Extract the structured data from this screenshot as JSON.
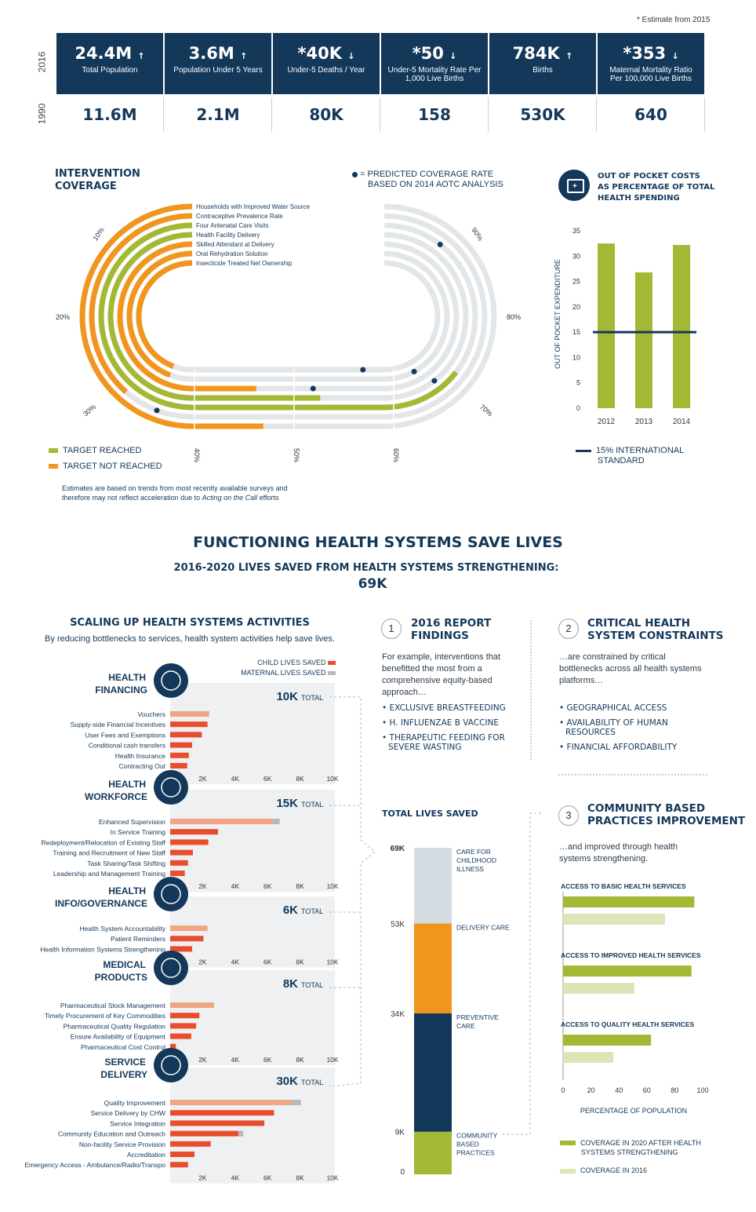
{
  "stats": {
    "note": "* Estimate from 2015",
    "year_top": "2016",
    "year_bottom": "1990",
    "items": [
      {
        "value": "24.4M",
        "arrow": "↑",
        "label": "Total Population",
        "prev": "11.6M"
      },
      {
        "value": "3.6M",
        "arrow": "↑",
        "label": "Population Under 5 Years",
        "prev": "2.1M"
      },
      {
        "value": "*40K",
        "arrow": "↓",
        "label": "Under-5 Deaths / Year",
        "prev": "80K"
      },
      {
        "value": "*50",
        "arrow": "↓",
        "label": "Under-5 Mortality Rate Per 1,000 Live Births",
        "prev": "158"
      },
      {
        "value": "784K",
        "arrow": "↑",
        "label": "Births",
        "prev": "530K"
      },
      {
        "value": "*353",
        "arrow": "↓",
        "label": "Maternal Mortality Ratio Per 100,000 Live Births",
        "prev": "640"
      }
    ]
  },
  "intervention": {
    "title_l1": "INTERVENTION",
    "title_l2": "COVERAGE",
    "predicted_l1": "= PREDICTED COVERAGE RATE",
    "predicted_l2": "BASED ON 2014 AOTC ANALYSIS",
    "legend_reached": "TARGET REACHED",
    "legend_not": "TARGET NOT REACHED",
    "note_l1": "Estimates are based on trends from most recently available surveys and",
    "note_l2a": "therefore may not reflect acceleration due to ",
    "note_l2b": "Acting on the Call",
    "note_l2c": " efforts",
    "colors": {
      "reached": "#a3b935",
      "not": "#f0961f",
      "track": "#e3e6e8",
      "dot": "#13385a"
    }
  },
  "oop": {
    "title_l1": "OUT OF POCKET COSTS",
    "title_l2": "AS PERCENTAGE OF TOTAL",
    "title_l3": "HEALTH SPENDING",
    "legend_l1": "15% INTERNATIONAL",
    "legend_l2": "STANDARD"
  },
  "headline": {
    "title": "FUNCTIONING HEALTH SYSTEMS SAVE LIVES",
    "sub": "2016-2020 LIVES SAVED FROM HEALTH SYSTEMS STRENGTHENING:",
    "value": "69K"
  },
  "scaling": {
    "title": "SCALING UP HEALTH SYSTEMS ACTIVITIES",
    "sub": "By reducing bottlenecks to services, health system activities help save lives.",
    "legend_child": "CHILD LIVES SAVED",
    "legend_maternal": "MATERNAL LIVES SAVED",
    "total_word": "TOTAL",
    "colors": {
      "child": "#e84e2e",
      "maternal": "#b8b8b8",
      "highlight": "#f0a585",
      "panel": "#eef0f1"
    },
    "groups": [
      {
        "name_l1": "HEALTH",
        "name_l2": "FINANCING",
        "total": "10K"
      },
      {
        "name_l1": "HEALTH",
        "name_l2": "WORKFORCE",
        "total": "15K"
      },
      {
        "name_l1": "HEALTH",
        "name_l2": "INFO/GOVERNANCE",
        "total": "6K"
      },
      {
        "name_l1": "MEDICAL",
        "name_l2": "PRODUCTS",
        "total": "8K"
      },
      {
        "name_l1": "SERVICE",
        "name_l2": "DELIVERY",
        "total": "30K"
      }
    ]
  },
  "findings": {
    "num": "1",
    "title_l1": "2016 REPORT",
    "title_l2": "FINDINGS",
    "text_l1": "For example, interventions that",
    "text_l2": "benefitted the most from a",
    "text_l3": "comprehensive equity-based",
    "text_l4": "approach…",
    "b1": "• EXCLUSIVE BREASTFEEDING",
    "b2": "• H. INFLUENZAE B VACCINE",
    "b3_l1": "• THERAPEUTIC FEEDING FOR",
    "b3_l2": "SEVERE WASTING"
  },
  "constraints": {
    "num": "2",
    "title_l1": "CRITICAL HEALTH",
    "title_l2": "SYSTEM CONSTRAINTS",
    "text_l1": "…are constrained by critical",
    "text_l2": "bottlenecks across all health systems",
    "text_l3": "platforms…",
    "b1": "• GEOGRAPHICAL ACCESS",
    "b2_l1": "• AVAILABILITY OF HUMAN",
    "b2_l2": "RESOURCES",
    "b3": "• FINANCIAL AFFORDABILITY"
  },
  "community": {
    "num": "3",
    "title_l1": "COMMUNITY BASED",
    "title_l2": "PRACTICES IMPROVEMENT",
    "text_l1": "…and improved through health",
    "text_l2": "systems strengthening.",
    "legend_2020_l1": "COVERAGE IN 2020 AFTER HEALTH",
    "legend_2020_l2": "SYSTEMS STRENGTHENING",
    "legend_2016": "COVERAGE IN 2016"
  },
  "total_lives": {
    "title": "TOTAL LIVES SAVED"
  },
  "chart_data": [
    {
      "type": "bar",
      "title": "OUT OF POCKET COSTS AS PERCENTAGE OF TOTAL HEALTH SPENDING",
      "ylabel": "OUT OF POCKET EXPENDITURE",
      "categories": [
        "2012",
        "2013",
        "2014"
      ],
      "values": [
        32.5,
        26.8,
        32.2
      ],
      "ylim": [
        0,
        35
      ],
      "yticks": [
        0,
        5,
        10,
        15,
        20,
        25,
        30,
        35
      ],
      "reference_line": 15,
      "color": "#a3b935",
      "line_color": "#13385a"
    },
    {
      "type": "radial-bar",
      "title": "INTERVENTION COVERAGE",
      "axis_labels": [
        "10%",
        "20%",
        "30%",
        "40%",
        "50%",
        "60%",
        "70%",
        "80%",
        "90%"
      ],
      "series": [
        {
          "name": "Households with Improved Water Source",
          "value": 45,
          "predicted": null,
          "reached": false
        },
        {
          "name": "Contraceptive Prevalence Rate",
          "value": 27,
          "predicted": 31,
          "reached": false
        },
        {
          "name": "Four Antenatal Care Visits",
          "value": 73,
          "predicted": 92,
          "reached": true
        },
        {
          "name": "Health Facility Delivery",
          "value": 53,
          "predicted": 70,
          "reached": true
        },
        {
          "name": "Skilled Attendant at Delivery",
          "value": 44,
          "predicted": 52,
          "reached": false
        },
        {
          "name": "Oral Rehydration Solution",
          "value": 31,
          "predicted": 68,
          "reached": false
        },
        {
          "name": "Insecticide Treated Net Ownership",
          "value": 31,
          "predicted": 59,
          "reached": false
        }
      ]
    },
    {
      "type": "bar",
      "title": "HEALTH FINANCING",
      "categories": [
        "Vouchers",
        "Supply-side Financial Incentives",
        "User Fees and Exemptions",
        "Conditional cash transfers",
        "Health Insurance",
        "Contracting Out"
      ],
      "series": [
        {
          "name": "CHILD LIVES SAVED",
          "values": [
            2400,
            2300,
            1950,
            1350,
            1150,
            1050
          ]
        }
      ],
      "highlight": [
        0
      ],
      "xticks": [
        "2K",
        "4K",
        "6K",
        "8K",
        "10K"
      ],
      "xlim": [
        0,
        10000
      ]
    },
    {
      "type": "bar",
      "title": "HEALTH WORKFORCE",
      "categories": [
        "Enhanced Supervision",
        "In Service Training",
        "Redeployment/Relocation of Existing Staff",
        "Training and Recruitment of New Staff",
        "Task Sharing/Task Shifting",
        "Leadership and Management Training"
      ],
      "series": [
        {
          "name": "CHILD LIVES SAVED",
          "values": [
            6300,
            2950,
            2350,
            1400,
            1100,
            900
          ]
        },
        {
          "name": "MATERNAL LIVES SAVED",
          "values": [
            450,
            0,
            0,
            0,
            0,
            0
          ]
        }
      ],
      "highlight": [
        0
      ],
      "xticks": [
        "2K",
        "4K",
        "6K",
        "8K",
        "10K"
      ],
      "xlim": [
        0,
        10000
      ]
    },
    {
      "type": "bar",
      "title": "HEALTH INFO/GOVERNANCE",
      "categories": [
        "Health System Accountability",
        "Patient Reminders",
        "Health Information Systems Strengthening"
      ],
      "series": [
        {
          "name": "CHILD LIVES SAVED",
          "values": [
            2300,
            2050,
            1350
          ]
        }
      ],
      "highlight": [
        0
      ],
      "xticks": [
        "2K",
        "4K",
        "6K",
        "8K",
        "10K"
      ],
      "xlim": [
        0,
        10000
      ]
    },
    {
      "type": "bar",
      "title": "MEDICAL PRODUCTS",
      "categories": [
        "Pharmaceutical Stock Management",
        "Timely Procurement of Key Commodities",
        "Pharmaceutical Quality Regulation",
        "Ensure Availability of Equipment",
        "Pharmaceutical Cost Control"
      ],
      "series": [
        {
          "name": "CHILD LIVES SAVED",
          "values": [
            2700,
            1800,
            1600,
            1300,
            350
          ]
        }
      ],
      "highlight": [
        0
      ],
      "xticks": [
        "2K",
        "4K",
        "6K",
        "8K",
        "10K"
      ],
      "xlim": [
        0,
        10000
      ]
    },
    {
      "type": "bar",
      "title": "SERVICE DELIVERY",
      "categories": [
        "Quality Improvement",
        "Service Delivery by CHW",
        "Service Integration",
        "Community Education and Outreach",
        "Non-facility Service Provision",
        "Accreditation",
        "Emergency Access - Ambulance/Radio/Transpo"
      ],
      "series": [
        {
          "name": "CHILD LIVES SAVED",
          "values": [
            7500,
            6400,
            5800,
            4200,
            2500,
            1500,
            1100
          ]
        },
        {
          "name": "MATERNAL LIVES SAVED",
          "values": [
            550,
            0,
            0,
            300,
            0,
            0,
            0
          ]
        }
      ],
      "highlight": [
        0
      ],
      "xticks": [
        "2K",
        "4K",
        "6K",
        "8K",
        "10K"
      ],
      "xlim": [
        0,
        10000
      ]
    },
    {
      "type": "stacked-bar",
      "title": "TOTAL LIVES SAVED",
      "yticks": [
        "0",
        "9K",
        "34K",
        "53K",
        "69K"
      ],
      "segments": [
        {
          "name": "COMMUNITY BASED PRACTICES",
          "from": 0,
          "to": 9000,
          "color": "#a3b935"
        },
        {
          "name": "PREVENTIVE CARE",
          "from": 9000,
          "to": 34000,
          "color": "#13385a"
        },
        {
          "name": "DELIVERY CARE",
          "from": 34000,
          "to": 53000,
          "color": "#f0961f"
        },
        {
          "name": "CARE FOR CHILDHOOD ILLNESS",
          "from": 53000,
          "to": 69000,
          "color": "#d3dce0"
        }
      ],
      "ylim": [
        0,
        69000
      ]
    },
    {
      "type": "bar",
      "title": "COMMUNITY BASED PRACTICES IMPROVEMENT",
      "xlabel": "PERCENTAGE OF POPULATION",
      "xticks": [
        "0",
        "20",
        "40",
        "60",
        "80",
        "100"
      ],
      "xlim": [
        0,
        100
      ],
      "categories": [
        "ACCESS TO BASIC HEALTH SERVICES",
        "ACCESS TO IMPROVED HEALTH SERVICES",
        "ACCESS TO QUALITY HEALTH SERVICES"
      ],
      "series": [
        {
          "name": "COVERAGE IN 2020 AFTER HEALTH SYSTEMS STRENGTHENING",
          "values": [
            94,
            92,
            63
          ],
          "color": "#a3b935"
        },
        {
          "name": "COVERAGE IN 2016",
          "values": [
            73,
            51,
            36
          ],
          "color": "#dde4b8"
        }
      ]
    }
  ]
}
